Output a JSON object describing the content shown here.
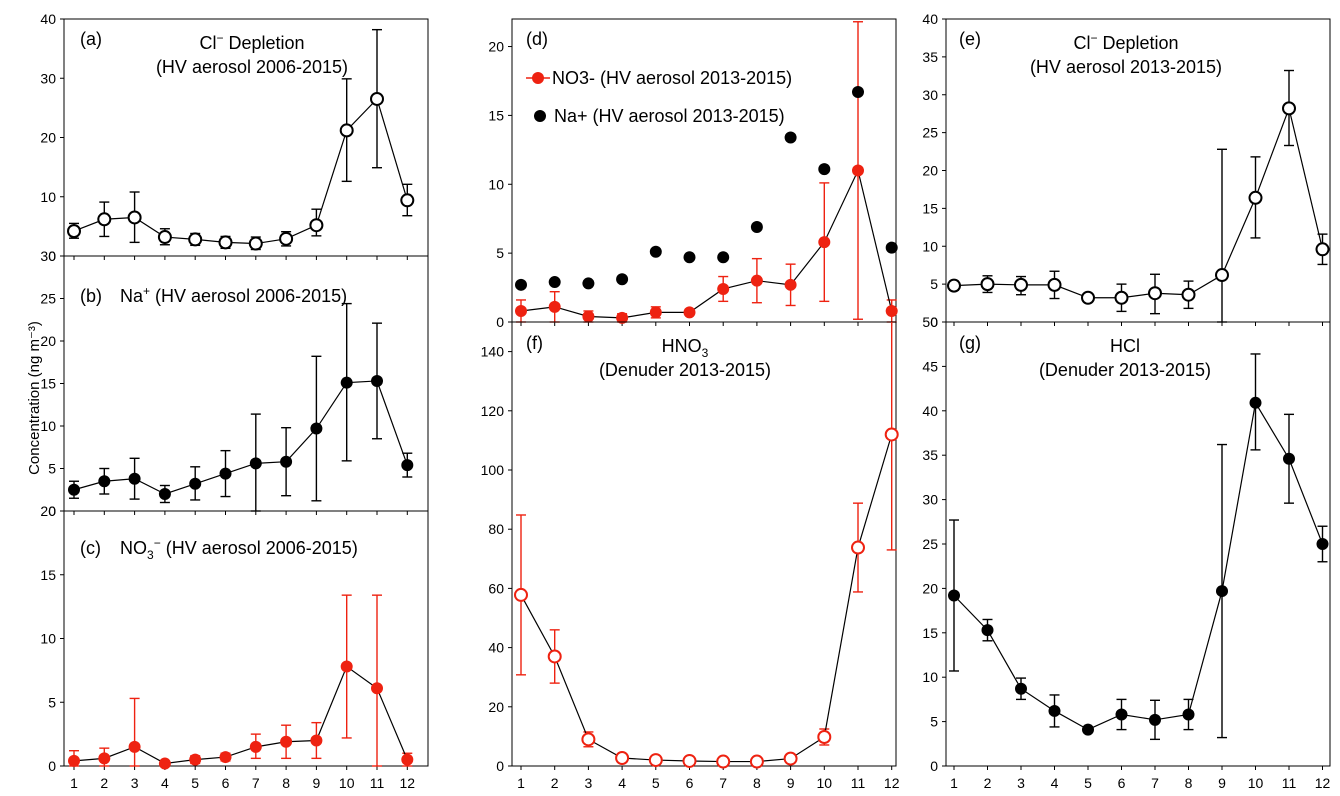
{
  "figure": {
    "ylabel": "Concentration (ng m⁻³)",
    "x_ticks": [
      "1",
      "2",
      "3",
      "4",
      "5",
      "6",
      "7",
      "8",
      "9",
      "10",
      "11",
      "12"
    ],
    "colors": {
      "black": "#000000",
      "red": "#ee2211",
      "white": "#ffffff"
    }
  },
  "chart_data": [
    {
      "id": "a",
      "type": "line",
      "panel_label": "(a)",
      "title": "Cl⁻ Depletion",
      "subtitle": "(HV aerosol 2006-2015)",
      "x": [
        1,
        2,
        3,
        4,
        5,
        6,
        7,
        8,
        9,
        10,
        11,
        12
      ],
      "ylim": [
        0,
        40
      ],
      "y_ticks": [
        "0",
        "10",
        "20",
        "30",
        "40"
      ],
      "series": [
        {
          "marker": "open",
          "color": "#000000",
          "line": true,
          "values": [
            4.2,
            6.2,
            6.5,
            3.2,
            2.8,
            2.3,
            2.1,
            2.9,
            5.2,
            21.2,
            26.5,
            9.4
          ],
          "err_low": [
            1.2,
            2.9,
            4.2,
            1.3,
            1.0,
            1.0,
            1.0,
            1.2,
            1.8,
            8.6,
            11.6,
            2.6
          ],
          "err_high": [
            1.3,
            2.9,
            4.3,
            1.4,
            1.0,
            1.0,
            1.1,
            1.2,
            2.7,
            8.7,
            11.7,
            2.7
          ]
        }
      ]
    },
    {
      "id": "b",
      "type": "line",
      "panel_label": "(b)",
      "title": "Na⁺ (HV aerosol 2006-2015)",
      "x": [
        1,
        2,
        3,
        4,
        5,
        6,
        7,
        8,
        9,
        10,
        11,
        12
      ],
      "ylim": [
        0,
        30
      ],
      "y_ticks": [
        "0",
        "5",
        "10",
        "15",
        "20",
        "25",
        "30"
      ],
      "series": [
        {
          "marker": "filled",
          "color": "#000000",
          "line": true,
          "values": [
            2.5,
            3.5,
            3.8,
            2.0,
            3.2,
            4.4,
            5.6,
            5.8,
            9.7,
            15.1,
            15.3,
            5.4
          ],
          "err_low": [
            1.0,
            1.5,
            2.4,
            1.0,
            1.9,
            2.7,
            5.6,
            4.0,
            8.5,
            9.2,
            6.8,
            1.4
          ],
          "err_high": [
            1.0,
            1.5,
            2.4,
            1.0,
            2.0,
            2.7,
            5.8,
            4.0,
            8.5,
            9.3,
            6.8,
            1.4
          ]
        }
      ]
    },
    {
      "id": "c",
      "type": "line",
      "panel_label": "(c)",
      "title": "NO₃⁻ (HV aerosol 2006-2015)",
      "x": [
        1,
        2,
        3,
        4,
        5,
        6,
        7,
        8,
        9,
        10,
        11,
        12
      ],
      "ylim": [
        0,
        20
      ],
      "y_ticks": [
        "0",
        "5",
        "10",
        "15",
        "20"
      ],
      "series": [
        {
          "marker": "filled",
          "color": "#ee2211",
          "line": true,
          "values": [
            0.4,
            0.6,
            1.5,
            0.2,
            0.5,
            0.7,
            1.5,
            1.9,
            2.0,
            7.8,
            6.1,
            0.5
          ],
          "err_low": [
            0.4,
            0.6,
            1.5,
            0.2,
            0.3,
            0.3,
            0.9,
            1.3,
            1.4,
            5.6,
            6.1,
            0.5
          ],
          "err_high": [
            0.8,
            0.8,
            3.8,
            0.2,
            0.3,
            0.3,
            1.0,
            1.3,
            1.4,
            5.6,
            7.3,
            0.5
          ]
        }
      ]
    },
    {
      "id": "d",
      "type": "line",
      "panel_label": "(d)",
      "x": [
        1,
        2,
        3,
        4,
        5,
        6,
        7,
        8,
        9,
        10,
        11,
        12
      ],
      "ylim": [
        0,
        22
      ],
      "y_ticks": [
        "0",
        "5",
        "10",
        "15",
        "20"
      ],
      "legend": [
        {
          "label": "NO3- (HV aerosol 2013-2015)",
          "color": "#ee2211",
          "marker": "filled",
          "line": true
        },
        {
          "label": "Na+ (HV aerosol 2013-2015)",
          "color": "#000000",
          "marker": "filled",
          "line": false
        }
      ],
      "series": [
        {
          "name": "NO3- (HV aerosol 2013-2015)",
          "marker": "filled",
          "color": "#ee2211",
          "line": true,
          "values": [
            0.8,
            1.1,
            0.4,
            0.3,
            0.7,
            0.7,
            2.4,
            3.0,
            2.7,
            5.8,
            11.0,
            0.8
          ],
          "err_low": [
            0.8,
            1.1,
            0.4,
            0.3,
            0.4,
            0.2,
            0.9,
            1.6,
            1.5,
            4.3,
            10.8,
            0.8
          ],
          "err_high": [
            0.8,
            1.1,
            0.4,
            0.3,
            0.4,
            0.2,
            0.9,
            1.6,
            1.5,
            4.3,
            10.8,
            0.8
          ]
        },
        {
          "name": "Na+ (HV aerosol 2013-2015)",
          "marker": "filled",
          "color": "#000000",
          "line": false,
          "values": [
            2.7,
            2.9,
            2.8,
            3.1,
            5.1,
            4.7,
            4.7,
            6.9,
            13.4,
            11.1,
            16.7,
            5.4
          ]
        }
      ]
    },
    {
      "id": "e",
      "type": "line",
      "panel_label": "(e)",
      "title": "Cl⁻ Depletion",
      "subtitle": "(HV aerosol 2013-2015)",
      "x": [
        1,
        2,
        3,
        4,
        5,
        6,
        7,
        8,
        9,
        10,
        11,
        12
      ],
      "ylim": [
        0,
        40
      ],
      "y_ticks": [
        "0",
        "5",
        "10",
        "15",
        "20",
        "25",
        "30",
        "35",
        "40"
      ],
      "series": [
        {
          "marker": "open",
          "color": "#000000",
          "line": true,
          "values": [
            4.8,
            5.0,
            4.9,
            4.9,
            3.2,
            3.2,
            3.8,
            3.6,
            6.2,
            16.4,
            28.2,
            9.6
          ],
          "err_low": [
            0.6,
            1.1,
            1.3,
            1.8,
            0.4,
            1.8,
            2.7,
            1.8,
            6.3,
            5.3,
            4.9,
            2.0
          ],
          "err_high": [
            0.6,
            1.1,
            1.1,
            1.8,
            0.3,
            1.8,
            2.5,
            1.8,
            16.6,
            5.4,
            5.0,
            2.0
          ]
        }
      ]
    },
    {
      "id": "f",
      "type": "line",
      "panel_label": "(f)",
      "title": "HNO₃",
      "subtitle": "(Denuder 2013-2015)",
      "x": [
        1,
        2,
        3,
        4,
        5,
        6,
        7,
        8,
        9,
        10,
        11,
        12
      ],
      "ylim": [
        0,
        150
      ],
      "y_ticks": [
        "0",
        "20",
        "40",
        "60",
        "80",
        "100",
        "120",
        "140"
      ],
      "series": [
        {
          "marker": "open",
          "color": "#ee2211",
          "line": true,
          "values": [
            57.8,
            37.0,
            9.0,
            2.7,
            2.0,
            1.7,
            1.5,
            1.5,
            2.5,
            9.8,
            73.8,
            112.0
          ],
          "err_low": [
            27.0,
            9.0,
            2.5,
            1.0,
            0.5,
            0.4,
            0.4,
            0.4,
            0.6,
            2.7,
            15.0,
            39.0
          ],
          "err_high": [
            27.0,
            9.0,
            2.5,
            1.0,
            0.5,
            0.4,
            0.4,
            0.4,
            0.6,
            2.7,
            15.0,
            39.0
          ]
        }
      ]
    },
    {
      "id": "g",
      "type": "line",
      "panel_label": "(g)",
      "title": "HCl",
      "subtitle": "(Denuder 2013-2015)",
      "x": [
        1,
        2,
        3,
        4,
        5,
        6,
        7,
        8,
        9,
        10,
        11,
        12
      ],
      "ylim": [
        0,
        50
      ],
      "y_ticks": [
        "0",
        "5",
        "10",
        "15",
        "20",
        "25",
        "30",
        "35",
        "40",
        "45",
        "50"
      ],
      "series": [
        {
          "marker": "filled",
          "color": "#000000",
          "line": true,
          "values": [
            19.2,
            15.3,
            8.7,
            6.2,
            4.1,
            5.8,
            5.2,
            5.8,
            19.7,
            40.9,
            34.6,
            25.0
          ],
          "err_low": [
            8.5,
            1.2,
            1.2,
            1.8,
            0.3,
            1.7,
            2.2,
            1.7,
            16.5,
            5.3,
            5.0,
            2.0
          ],
          "err_high": [
            8.5,
            1.2,
            1.2,
            1.8,
            0.3,
            1.7,
            2.2,
            1.7,
            16.5,
            5.5,
            5.0,
            2.0
          ]
        }
      ]
    }
  ]
}
